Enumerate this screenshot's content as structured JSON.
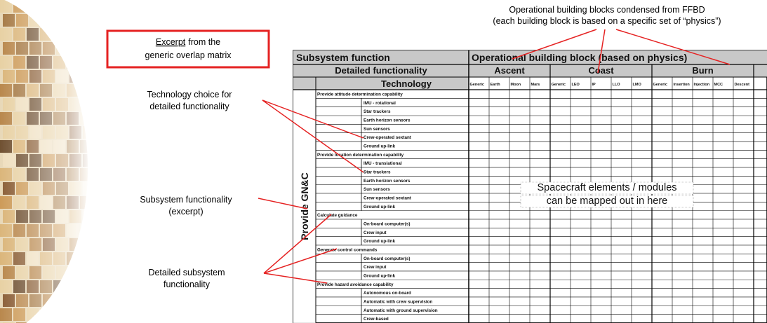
{
  "excerpt_box": {
    "underlined": "Excerpt",
    "line1_rest": "from the",
    "line2": "generic overlap matrix"
  },
  "annotations": {
    "top": [
      "Operational building blocks condensed from FFBD",
      "(each building block is based on a specific set of “physics”)"
    ],
    "technology": [
      "Technology choice for",
      "detailed functionality"
    ],
    "subsystem": [
      "Subsystem functionality",
      "(excerpt)"
    ],
    "detailed": [
      "Detailed subsystem",
      "functionality"
    ]
  },
  "table": {
    "header": {
      "subsystem_function": "Subsystem function",
      "detailed_functionality": "Detailed functionality",
      "technology": "Technology",
      "operational": "Operational building block (based on physics)"
    },
    "phases": [
      {
        "name": "Ascent",
        "columns": [
          "Generic",
          "Earth",
          "Moon",
          "Mars"
        ]
      },
      {
        "name": "Coast",
        "columns": [
          "Generic",
          "LEO",
          "IP",
          "LLO",
          "LMO"
        ]
      },
      {
        "name": "Burn",
        "columns": [
          "Generic",
          "Insertion",
          "Injection",
          "MCC",
          "Descent"
        ]
      }
    ],
    "subsystem": "Provide GN&C",
    "groups": [
      {
        "function": "Provide attitude determination capability",
        "technologies": [
          "IMU - rotational",
          "Star trackers",
          "Earth horizon sensors",
          "Sun sensors",
          "Crew-operated sextant",
          "Ground up-link"
        ]
      },
      {
        "function": "Provide location determination capability",
        "technologies": [
          "IMU - translational",
          "Star trackers",
          "Earth horizon sensors",
          "Sun sensors",
          "Crew-operated sextant",
          "Ground up-link"
        ]
      },
      {
        "function": "Calculate guidance",
        "technologies": [
          "On-board computer(s)",
          "Crew input",
          "Ground up-link"
        ]
      },
      {
        "function": "Generate control commands",
        "technologies": [
          "On-board computer(s)",
          "Crew input",
          "Ground up-link"
        ]
      },
      {
        "function": "Provide hazard avoidance capability",
        "technologies": [
          "Autonomous on-board",
          "Automatic with crew supervision",
          "Automatic with ground supervision",
          "Crew-based"
        ]
      }
    ],
    "overlay": [
      "Spacecraft elements / modules",
      "can be mapped out in here"
    ]
  }
}
